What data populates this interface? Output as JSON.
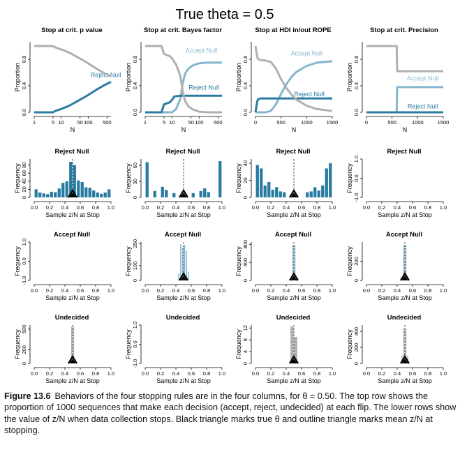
{
  "figure": {
    "title": "True theta = 0.5",
    "caption_number": "Figure 13.6",
    "caption_text": "Behaviors of the four stopping rules are in the four columns, for θ = 0.50. The top row shows the proportion of 1000 sequences that make each decision (accept, reject, undecided) at each flip. The lower rows show the value of z/N when data collection stops. Black triangle marks true θ and outline triangle marks mean z/N at stopping."
  },
  "colors": {
    "reject": "#2a7ba1",
    "accept": "#85b6cf",
    "undecided": "#b0b0b0",
    "axis": "#000000"
  },
  "chart_data": [
    {
      "type": "line",
      "panel": "top-1",
      "title": "Stop at crit. p value",
      "xlabel": "N",
      "ylabel": "Proportion",
      "xscale": "log",
      "xticks": [
        1,
        5,
        10,
        50,
        100,
        500
      ],
      "xlim": [
        1,
        700
      ],
      "ylim": [
        0,
        1
      ],
      "yticks": [
        "0.0",
        "0.4",
        "0.8"
      ],
      "series": [
        {
          "name": "Reject Null",
          "color": "reject",
          "label_near": [
            450,
            0.53
          ],
          "x": [
            1,
            3,
            5,
            6,
            10,
            20,
            50,
            100,
            200,
            400,
            700
          ],
          "y": [
            0.0,
            0.0,
            0.0,
            0.02,
            0.05,
            0.1,
            0.19,
            0.26,
            0.34,
            0.41,
            0.46
          ]
        },
        {
          "name": "Undecided",
          "color": "undecided",
          "x": [
            1,
            3,
            5,
            6,
            10,
            20,
            50,
            100,
            200,
            400,
            700
          ],
          "y": [
            1.0,
            1.0,
            1.0,
            0.98,
            0.95,
            0.9,
            0.81,
            0.74,
            0.66,
            0.59,
            0.54
          ]
        }
      ]
    },
    {
      "type": "line",
      "panel": "top-2",
      "title": "Stop at crit. Bayes factor",
      "xlabel": "N",
      "ylabel": "Proportion",
      "xscale": "log",
      "xticks": [
        1,
        5,
        10,
        50,
        100,
        500
      ],
      "xlim": [
        1,
        700
      ],
      "ylim": [
        0,
        1
      ],
      "yticks": [
        "0.0",
        "0.4",
        "0.8"
      ],
      "series": [
        {
          "name": "Accept Null",
          "color": "accept",
          "label_near": [
            120,
            0.9
          ],
          "x": [
            1,
            5,
            10,
            14,
            20,
            25,
            30,
            40,
            60,
            100,
            200,
            700
          ],
          "y": [
            0.0,
            0.0,
            0.0,
            0.05,
            0.2,
            0.45,
            0.58,
            0.66,
            0.71,
            0.74,
            0.75,
            0.75
          ]
        },
        {
          "name": "Reject Null",
          "color": "reject",
          "label_near": [
            150,
            0.34
          ],
          "x": [
            1,
            4,
            5,
            8,
            10,
            12,
            20,
            60,
            700
          ],
          "y": [
            0.0,
            0.0,
            0.12,
            0.15,
            0.19,
            0.24,
            0.25,
            0.25,
            0.25
          ]
        },
        {
          "name": "Undecided",
          "color": "undecided",
          "x": [
            1,
            4,
            5,
            8,
            10,
            12,
            14,
            20,
            25,
            30,
            40,
            60,
            100,
            200,
            700
          ],
          "y": [
            1.0,
            1.0,
            0.88,
            0.85,
            0.81,
            0.76,
            0.72,
            0.55,
            0.3,
            0.17,
            0.09,
            0.04,
            0.01,
            0.0,
            0.0
          ]
        }
      ]
    },
    {
      "type": "line",
      "panel": "top-3",
      "title": "Stop at HDI in/out ROPE",
      "xlabel": "N",
      "ylabel": "Proportion",
      "xscale": "linear",
      "xticks": [
        0,
        500,
        1000,
        1500
      ],
      "xlim": [
        0,
        1500
      ],
      "ylim": [
        0,
        1
      ],
      "yticks": [
        "0.0",
        "0.4",
        "0.8"
      ],
      "series": [
        {
          "name": "Accept Null",
          "color": "accept",
          "label_near": [
            1000,
            0.86
          ],
          "x": [
            0,
            200,
            300,
            400,
            500,
            600,
            700,
            800,
            1000,
            1200,
            1500
          ],
          "y": [
            0.0,
            0.0,
            0.02,
            0.12,
            0.28,
            0.42,
            0.53,
            0.61,
            0.7,
            0.75,
            0.77
          ]
        },
        {
          "name": "Reject Null",
          "color": "reject",
          "label_near": [
            1050,
            0.24
          ],
          "x": [
            0,
            20,
            40,
            60,
            100,
            1500
          ],
          "y": [
            0.0,
            0.1,
            0.18,
            0.2,
            0.21,
            0.21
          ]
        },
        {
          "name": "Undecided",
          "color": "undecided",
          "x": [
            0,
            20,
            40,
            60,
            100,
            200,
            300,
            400,
            500,
            600,
            700,
            800,
            1000,
            1200,
            1500
          ],
          "y": [
            1.0,
            0.9,
            0.82,
            0.8,
            0.79,
            0.78,
            0.76,
            0.66,
            0.5,
            0.37,
            0.27,
            0.19,
            0.1,
            0.05,
            0.02
          ]
        }
      ]
    },
    {
      "type": "line",
      "panel": "top-4",
      "title": "Stop at crit. Precision",
      "xlabel": "N",
      "ylabel": "Proportion",
      "xscale": "linear",
      "xticks": [
        0,
        500,
        1000,
        1500
      ],
      "xlim": [
        0,
        1500
      ],
      "ylim": [
        0,
        1
      ],
      "yticks": [
        "0.0",
        "0.4",
        "0.8"
      ],
      "series": [
        {
          "name": "Undecided",
          "color": "undecided",
          "x": [
            0,
            590,
            600,
            1500
          ],
          "y": [
            1.0,
            1.0,
            0.62,
            0.62
          ]
        },
        {
          "name": "Accept Null",
          "color": "accept",
          "label_near": [
            1100,
            0.48
          ],
          "x": [
            0,
            590,
            600,
            1500
          ],
          "y": [
            0.0,
            0.0,
            0.38,
            0.38
          ]
        },
        {
          "name": "Reject Null",
          "color": "reject",
          "label_near": [
            1100,
            0.06
          ],
          "x": [
            0,
            1500
          ],
          "y": [
            0.0,
            0.0
          ]
        }
      ]
    },
    {
      "type": "bar",
      "panel": "row2-1",
      "title": "Reject Null",
      "xlabel": "Sample z/N at Stop",
      "ylabel": "Frequency",
      "color": "reject",
      "xlim": [
        0,
        1
      ],
      "xticks": [
        "0.0",
        "0.2",
        "0.4",
        "0.6",
        "0.8",
        "1.0"
      ],
      "ylim": [
        0,
        95
      ],
      "yticks": [
        "0",
        "20",
        "40",
        "60",
        "80"
      ],
      "true_theta": 0.5,
      "mean_z_over_n": 0.5,
      "bin_width": 0.05,
      "bin_starts": [
        0.0,
        0.05,
        0.1,
        0.15,
        0.2,
        0.25,
        0.3,
        0.35,
        0.4,
        0.45,
        0.5,
        0.55,
        0.6,
        0.65,
        0.7,
        0.75,
        0.8,
        0.85,
        0.9,
        0.95
      ],
      "values": [
        20,
        12,
        10,
        8,
        14,
        13,
        22,
        36,
        40,
        88,
        80,
        42,
        38,
        25,
        24,
        17,
        12,
        9,
        12,
        20
      ]
    },
    {
      "type": "bar",
      "panel": "row2-2",
      "title": "Reject Null",
      "xlabel": "Sample z/N at Stop",
      "ylabel": "Frequency",
      "color": "reject",
      "xlim": [
        0,
        1
      ],
      "xticks": [
        "0.0",
        "0.2",
        "0.4",
        "0.6",
        "0.8",
        "1.0"
      ],
      "ylim": [
        0,
        72
      ],
      "yticks": [
        "0",
        "30",
        "60"
      ],
      "true_theta": 0.5,
      "mean_z_over_n": 0.5,
      "bin_width": 0.05,
      "bin_starts": [
        0.0,
        0.05,
        0.1,
        0.15,
        0.2,
        0.25,
        0.3,
        0.35,
        0.4,
        0.45,
        0.5,
        0.55,
        0.6,
        0.65,
        0.7,
        0.75,
        0.8,
        0.85,
        0.9,
        0.95
      ],
      "values": [
        66,
        0,
        12,
        0,
        20,
        14,
        0,
        8,
        0,
        0,
        0,
        0,
        8,
        0,
        12,
        17,
        10,
        0,
        0,
        68
      ]
    },
    {
      "type": "bar",
      "panel": "row2-3",
      "title": "Reject Null",
      "xlabel": "Sample z/N at Stop",
      "ylabel": "Frequency",
      "color": "reject",
      "xlim": [
        0,
        1
      ],
      "xticks": [
        "0.0",
        "0.2",
        "0.4",
        "0.6",
        "0.8",
        "1.0"
      ],
      "ylim": [
        0,
        45
      ],
      "yticks": [
        "0",
        "20",
        "40"
      ],
      "true_theta": 0.5,
      "mean_z_over_n": 0.5,
      "bin_width": 0.05,
      "bin_starts": [
        0.0,
        0.05,
        0.1,
        0.15,
        0.2,
        0.25,
        0.3,
        0.35,
        0.4,
        0.45,
        0.5,
        0.55,
        0.6,
        0.65,
        0.7,
        0.75,
        0.8,
        0.85,
        0.9,
        0.95
      ],
      "values": [
        38,
        34,
        14,
        18,
        9,
        12,
        7,
        6,
        0,
        0,
        0,
        0,
        0,
        6,
        7,
        12,
        8,
        14,
        34,
        40
      ]
    },
    {
      "type": "bar",
      "panel": "row2-4",
      "title": "Reject Null",
      "xlabel": "Sample z/N at Stop",
      "ylabel": "Frequency",
      "color": "reject",
      "xlim": [
        0,
        1
      ],
      "xticks": [
        "0.0",
        "0.2",
        "0.4",
        "0.6",
        "0.8",
        "1.0"
      ],
      "ylim": [
        -1,
        1
      ],
      "yticks": [
        "-1.0",
        "0.0",
        "1.0"
      ],
      "empty": true,
      "values": []
    },
    {
      "type": "bar",
      "panel": "row3-1",
      "title": "Accept Null",
      "xlabel": "Sample z/N at Stop",
      "ylabel": "Frequency",
      "color": "accept",
      "xlim": [
        0,
        1
      ],
      "xticks": [
        "0.0",
        "0.2",
        "0.4",
        "0.6",
        "0.8",
        "1.0"
      ],
      "ylim": [
        -1,
        1
      ],
      "yticks": [
        "-1.0",
        "0.0",
        "1.0"
      ],
      "empty": true,
      "values": []
    },
    {
      "type": "bar",
      "panel": "row3-2",
      "title": "Accept Null",
      "xlabel": "Sample z/N at Stop",
      "ylabel": "Frequency",
      "color": "accept",
      "xlim": [
        0,
        1
      ],
      "xticks": [
        "0.0",
        "0.2",
        "0.4",
        "0.6",
        "0.8",
        "1.0"
      ],
      "ylim": [
        0,
        260
      ],
      "yticks": [
        "0",
        "100",
        "250"
      ],
      "true_theta": 0.5,
      "mean_z_over_n": 0.5,
      "bin_width": 0.025,
      "bin_starts": [
        0.425,
        0.45,
        0.475,
        0.5,
        0.525,
        0.55
      ],
      "values": [
        45,
        245,
        225,
        240,
        200,
        60
      ]
    },
    {
      "type": "bar",
      "panel": "row3-3",
      "title": "Accept Null",
      "xlabel": "Sample z/N at Stop",
      "ylabel": "Frequency",
      "color": "accept",
      "xlim": [
        0,
        1
      ],
      "xticks": [
        "0.0",
        "0.2",
        "0.4",
        "0.6",
        "0.8",
        "1.0"
      ],
      "ylim": [
        0,
        850
      ],
      "yticks": [
        "0",
        "400",
        "800"
      ],
      "true_theta": 0.5,
      "mean_z_over_n": 0.5,
      "bin_width": 0.025,
      "bin_starts": [
        0.475,
        0.5
      ],
      "values": [
        780,
        780
      ]
    },
    {
      "type": "bar",
      "panel": "row3-4",
      "title": "Accept Null",
      "xlabel": "Sample z/N at Stop",
      "ylabel": "Frequency",
      "color": "accept",
      "xlim": [
        0,
        1
      ],
      "xticks": [
        "0.0",
        "0.2",
        "0.4",
        "0.6",
        "0.8",
        "1.0"
      ],
      "ylim": [
        0,
        400
      ],
      "yticks": [
        "0",
        "200"
      ],
      "true_theta": 0.5,
      "mean_z_over_n": 0.5,
      "bin_width": 0.025,
      "bin_starts": [
        0.475,
        0.5
      ],
      "values": [
        370,
        370
      ]
    },
    {
      "type": "bar",
      "panel": "row4-1",
      "title": "Undecided",
      "xlabel": "Sample z/N at Stop",
      "ylabel": "Frequency",
      "color": "undecided",
      "xlim": [
        0,
        1
      ],
      "xticks": [
        "0.0",
        "0.2",
        "0.4",
        "0.6",
        "0.8",
        "1.0"
      ],
      "ylim": [
        0,
        560
      ],
      "yticks": [
        "0",
        "200",
        "500"
      ],
      "true_theta": 0.5,
      "mean_z_over_n": 0.5,
      "bin_width": 0.025,
      "bin_starts": [
        0.475,
        0.5
      ],
      "values": [
        535,
        535
      ]
    },
    {
      "type": "bar",
      "panel": "row4-2",
      "title": "Undecided",
      "xlabel": "Sample z/N at Stop",
      "ylabel": "Frequency",
      "color": "undecided",
      "xlim": [
        0,
        1
      ],
      "xticks": [
        "0.0",
        "0.2",
        "0.4",
        "0.6",
        "0.8",
        "1.0"
      ],
      "ylim": [
        -1,
        1
      ],
      "yticks": [
        "-1.0",
        "0.0",
        "1.0"
      ],
      "empty": true,
      "values": []
    },
    {
      "type": "bar",
      "panel": "row4-3",
      "title": "Undecided",
      "xlabel": "Sample z/N at Stop",
      "ylabel": "Frequency",
      "color": "undecided",
      "xlim": [
        0,
        1
      ],
      "xticks": [
        "0.0",
        "0.2",
        "0.4",
        "0.6",
        "0.8",
        "1.0"
      ],
      "ylim": [
        0,
        13
      ],
      "yticks": [
        "0",
        "4",
        "8",
        "12"
      ],
      "true_theta": 0.5,
      "mean_z_over_n": 0.5,
      "bin_width": 0.05,
      "bin_starts": [
        0.45,
        0.5
      ],
      "values": [
        12.5,
        9
      ]
    },
    {
      "type": "bar",
      "panel": "row4-4",
      "title": "Undecided",
      "xlabel": "Sample z/N at Stop",
      "ylabel": "Frequency",
      "color": "undecided",
      "xlim": [
        0,
        1
      ],
      "xticks": [
        "0.0",
        "0.2",
        "0.4",
        "0.6",
        "0.8",
        "1.0"
      ],
      "ylim": [
        0,
        480
      ],
      "yticks": [
        "0",
        "200",
        "400"
      ],
      "true_theta": 0.5,
      "mean_z_over_n": 0.5,
      "bin_width": 0.025,
      "bin_starts": [
        0.45,
        0.475,
        0.5,
        0.525
      ],
      "values": [
        100,
        440,
        430,
        95
      ]
    }
  ]
}
